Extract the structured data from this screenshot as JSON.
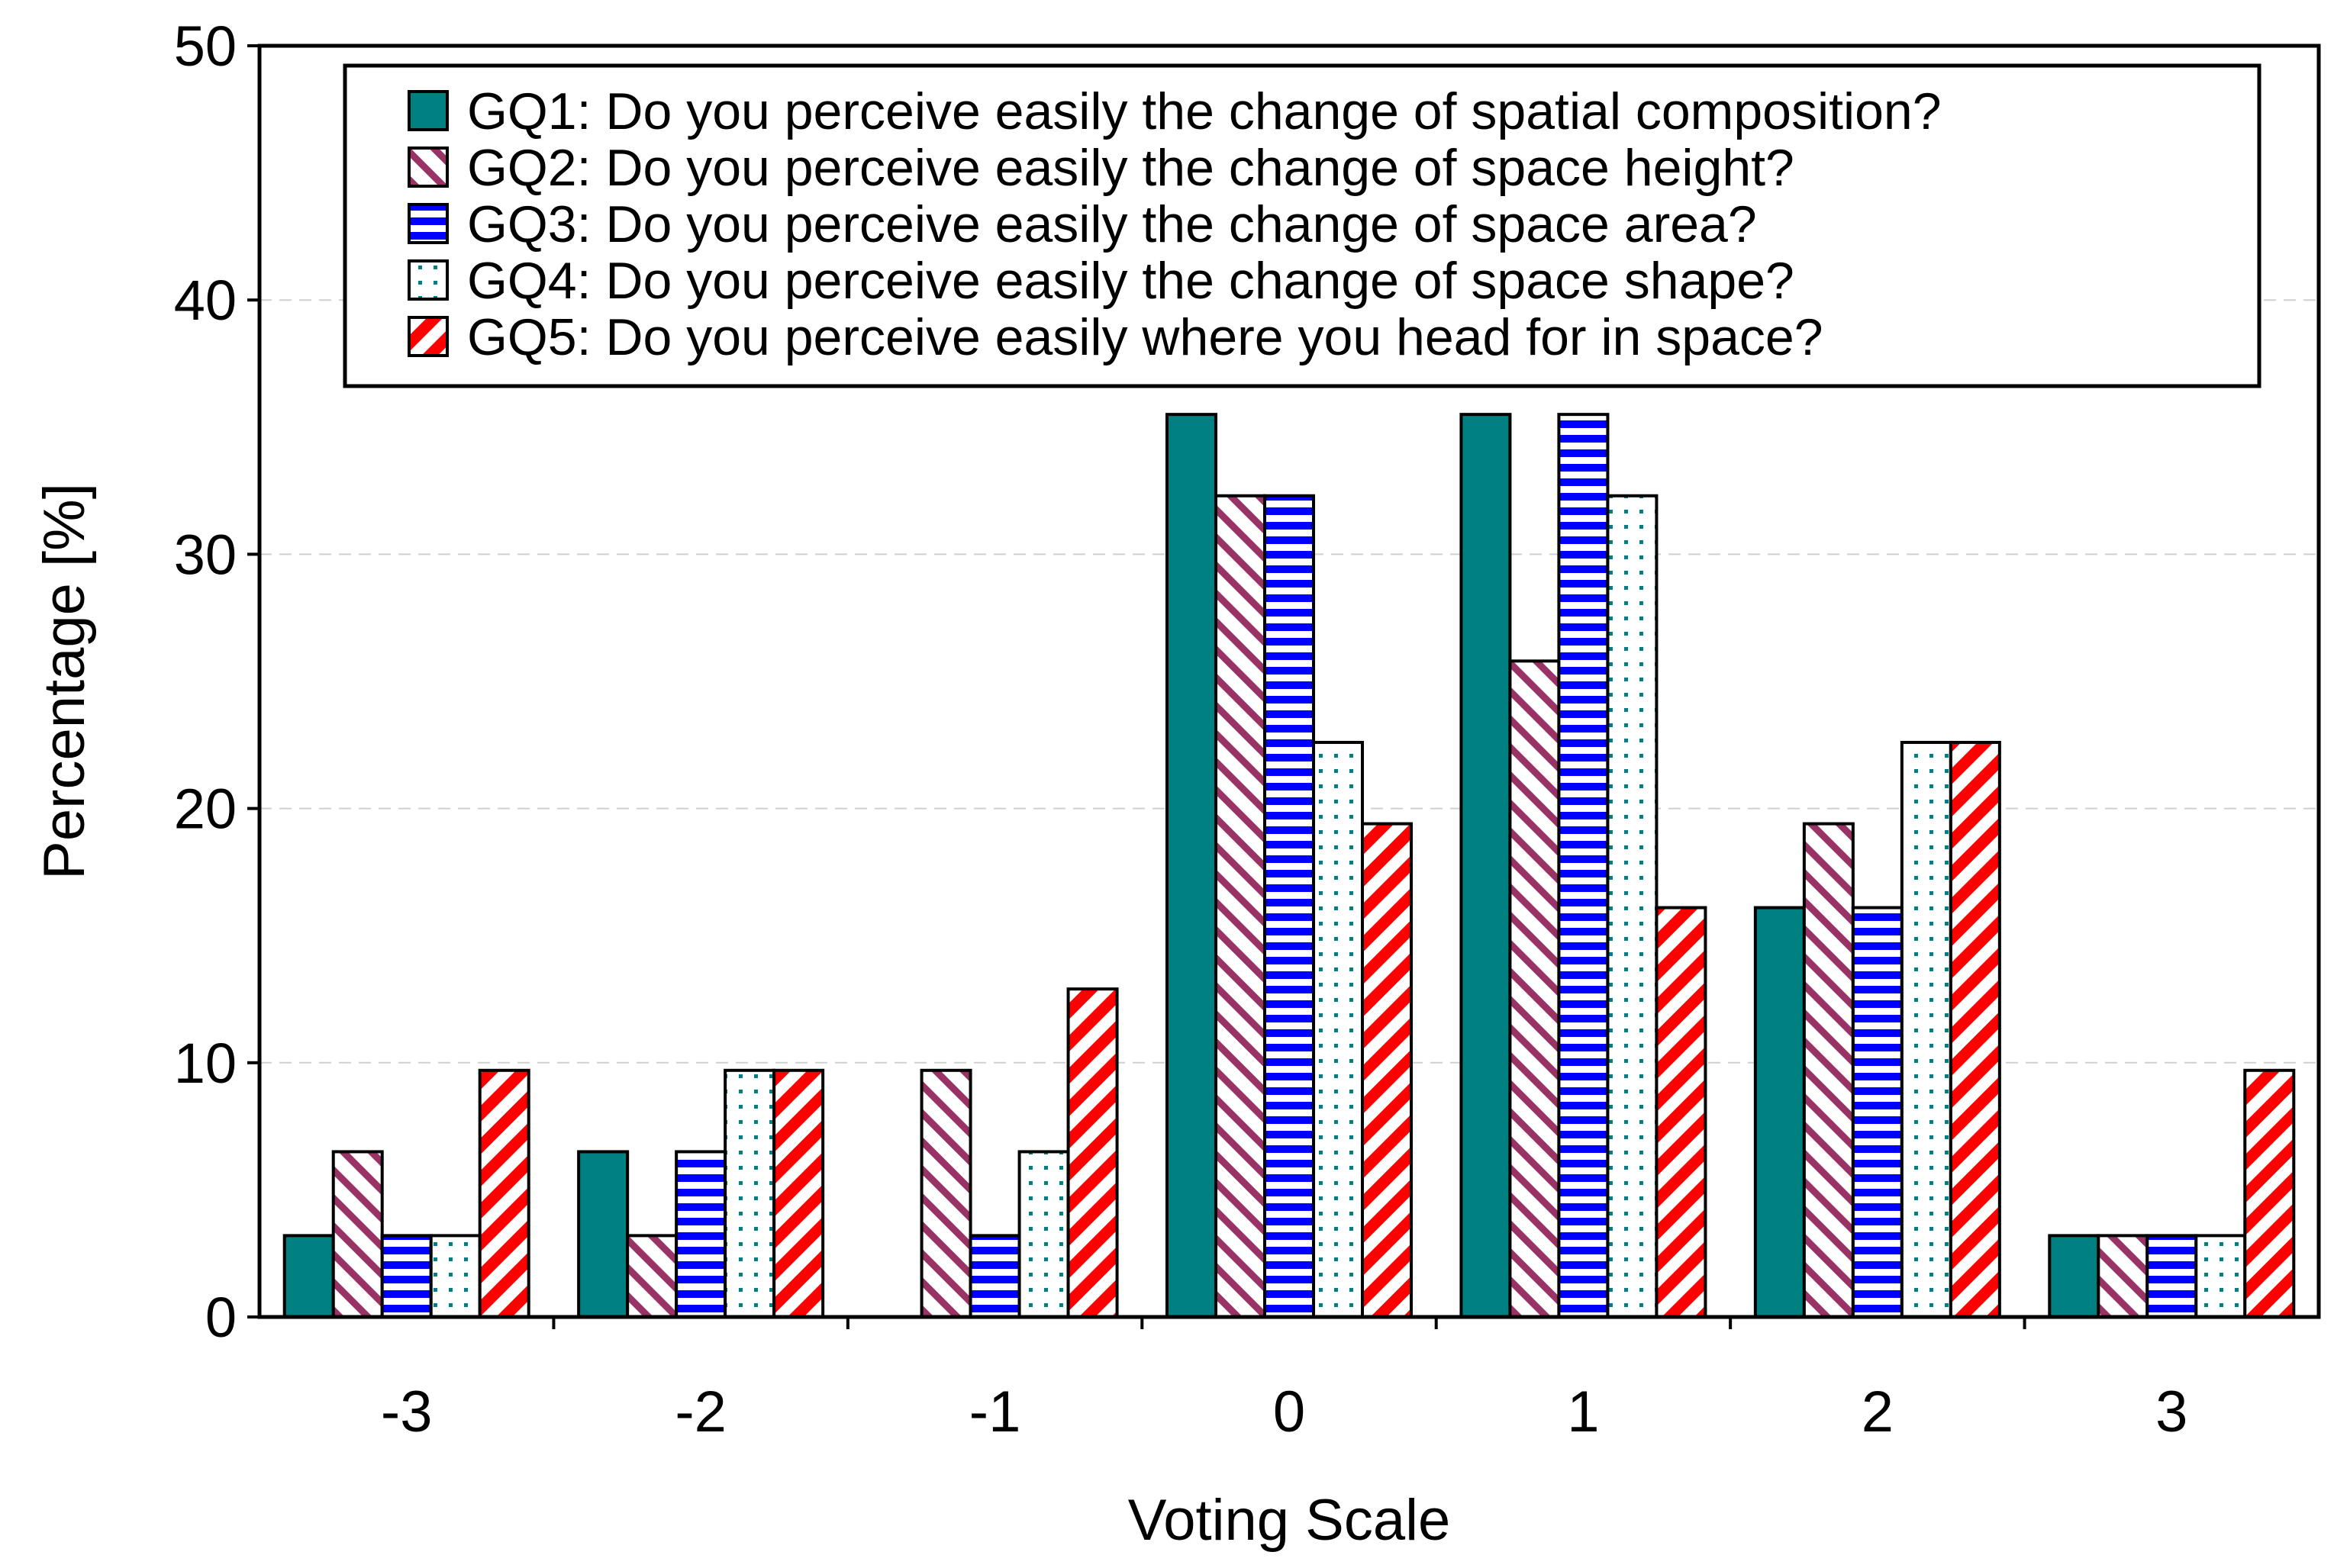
{
  "chart_data": {
    "type": "bar",
    "title": "",
    "xlabel": "Voting Scale",
    "ylabel": "Percentage  [%]",
    "categories": [
      "-3",
      "-2",
      "-1",
      "0",
      "1",
      "2",
      "3"
    ],
    "ylim": [
      0,
      50
    ],
    "yticks": [
      0,
      10,
      20,
      30,
      40,
      50
    ],
    "grid": "horizontal-dashed",
    "legend_position": "top-right",
    "series": [
      {
        "name": "GQ1: Do you perceive easily the change of spatial composition?",
        "color": "#008080",
        "pattern": "solid",
        "values": [
          3.2,
          6.5,
          0.0,
          35.5,
          35.5,
          16.1,
          3.2
        ]
      },
      {
        "name": "GQ2: Do you perceive easily the change of space height?",
        "color": "#993366",
        "pattern": "diagonal",
        "values": [
          6.5,
          3.2,
          9.7,
          32.3,
          25.8,
          19.4,
          3.2
        ]
      },
      {
        "name": "GQ3: Do you perceive easily the change of space area?",
        "color": "#0000ff",
        "pattern": "horizontal",
        "values": [
          3.2,
          6.5,
          3.2,
          32.3,
          35.5,
          16.1,
          3.2
        ]
      },
      {
        "name": "GQ4: Do you perceive easily the change of space shape?",
        "color": "#008080",
        "pattern": "dots",
        "values": [
          3.2,
          9.7,
          6.5,
          22.6,
          32.3,
          22.6,
          3.2
        ]
      },
      {
        "name": "GQ5: Do you perceive easily where you head for in space?",
        "color": "#ff0000",
        "pattern": "diagonal-wide",
        "values": [
          9.7,
          9.7,
          12.9,
          19.4,
          16.1,
          22.6,
          9.7
        ]
      }
    ]
  }
}
